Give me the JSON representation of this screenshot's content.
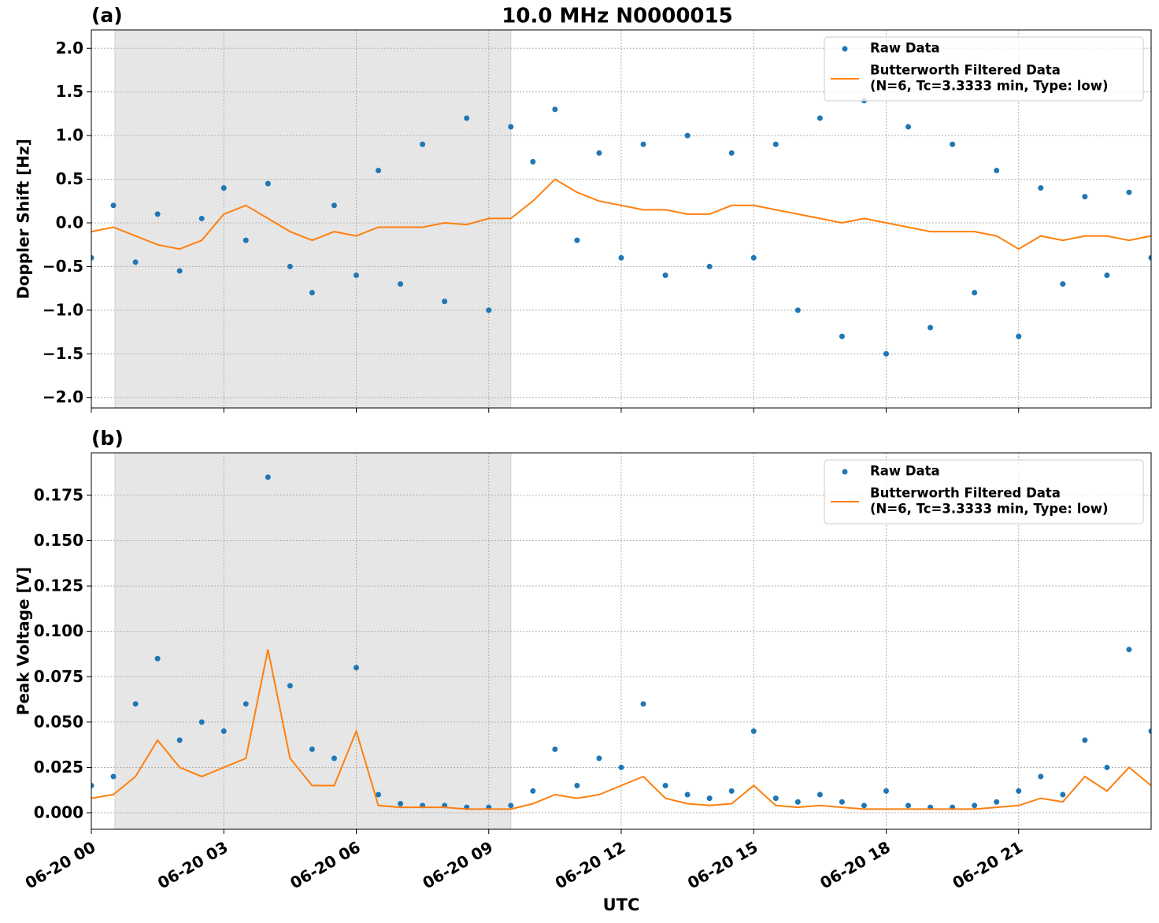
{
  "chart_data": [
    {
      "type": "scatter",
      "title": "10.0 MHz N0000015",
      "panel_label": "(a)",
      "y_label": "Doppler Shift [Hz]",
      "xlim": [
        0,
        24
      ],
      "ylim": [
        -2.12,
        2.21
      ],
      "shaded_span": [
        0.535,
        9.5
      ],
      "grid": true,
      "legend": "upper right",
      "xticks": [
        0,
        3,
        6,
        9,
        12,
        15,
        18,
        21
      ],
      "yticks": [
        {
          "value": -2.0,
          "label": "−2.0"
        },
        {
          "value": -1.5,
          "label": "−1.5"
        },
        {
          "value": -1.0,
          "label": "−1.0"
        },
        {
          "value": -0.5,
          "label": "−0.5"
        },
        {
          "value": 0.0,
          "label": "0.0"
        },
        {
          "value": 0.5,
          "label": "0.5"
        },
        {
          "value": 1.0,
          "label": "1.0"
        },
        {
          "value": 1.5,
          "label": "1.5"
        },
        {
          "value": 2.0,
          "label": "2.0"
        }
      ],
      "x": [
        0,
        0.5,
        1,
        1.5,
        2,
        2.5,
        3,
        3.5,
        4,
        4.5,
        5,
        5.5,
        6,
        6.5,
        7,
        7.5,
        8,
        8.5,
        9,
        9.5,
        10,
        10.5,
        11,
        11.5,
        12,
        12.5,
        13,
        13.5,
        14,
        14.5,
        15,
        15.5,
        16,
        16.5,
        17,
        17.5,
        18,
        18.5,
        19,
        19.5,
        20,
        20.5,
        21,
        21.5,
        22,
        22.5,
        23,
        23.5,
        24
      ],
      "series": [
        {
          "name": [
            "Raw Data"
          ],
          "mode": "markers",
          "color": "#1f77b4",
          "values": [
            -0.4,
            0.2,
            -0.45,
            0.1,
            -0.55,
            0.05,
            0.4,
            -0.2,
            0.45,
            -0.5,
            -0.8,
            0.2,
            -0.6,
            0.6,
            -0.7,
            0.9,
            -0.9,
            1.2,
            -1.0,
            1.1,
            0.7,
            1.3,
            -0.2,
            0.8,
            -0.4,
            0.9,
            -0.6,
            1.0,
            -0.5,
            0.8,
            -0.4,
            0.9,
            -1.0,
            1.2,
            -1.3,
            1.4,
            -1.5,
            1.1,
            -1.2,
            0.9,
            -0.8,
            0.6,
            -1.3,
            0.4,
            -0.7,
            0.3,
            -0.6,
            0.35,
            -0.4
          ]
        },
        {
          "name": [
            "Butterworth Filtered Data",
            "(N=6, Tc=3.3333 min, Type: low)"
          ],
          "mode": "line",
          "color": "#ff7f0e",
          "values": [
            -0.1,
            -0.05,
            -0.15,
            -0.25,
            -0.3,
            -0.2,
            0.1,
            0.2,
            0.05,
            -0.1,
            -0.2,
            -0.1,
            -0.15,
            -0.05,
            -0.05,
            -0.05,
            0,
            -0.02,
            0.05,
            0.05,
            0.25,
            0.5,
            0.35,
            0.25,
            0.2,
            0.15,
            0.15,
            0.1,
            0.1,
            0.2,
            0.2,
            0.15,
            0.1,
            0.05,
            0,
            0.05,
            0,
            -0.05,
            -0.1,
            -0.1,
            -0.1,
            -0.15,
            -0.3,
            -0.15,
            -0.2,
            -0.15,
            -0.15,
            -0.2,
            -0.15
          ]
        }
      ]
    },
    {
      "type": "scatter",
      "panel_label": "(b)",
      "y_label": "Peak Voltage [V]",
      "x_label": "UTC",
      "xlim": [
        0,
        24
      ],
      "ylim": [
        -0.0091,
        0.1984
      ],
      "shaded_span": [
        0.535,
        9.5
      ],
      "grid": true,
      "legend": "upper right",
      "xticks": [
        {
          "value": 0,
          "label": "06-20 00"
        },
        {
          "value": 3,
          "label": "06-20 03"
        },
        {
          "value": 6,
          "label": "06-20 06"
        },
        {
          "value": 9,
          "label": "06-20 09"
        },
        {
          "value": 12,
          "label": "06-20 12"
        },
        {
          "value": 15,
          "label": "06-20 15"
        },
        {
          "value": 18,
          "label": "06-20 18"
        },
        {
          "value": 21,
          "label": "06-20 21"
        }
      ],
      "yticks": [
        {
          "value": 0,
          "label": "0.000"
        },
        {
          "value": 0.025,
          "label": "0.025"
        },
        {
          "value": 0.05,
          "label": "0.050"
        },
        {
          "value": 0.075,
          "label": "0.075"
        },
        {
          "value": 0.1,
          "label": "0.100"
        },
        {
          "value": 0.125,
          "label": "0.125"
        },
        {
          "value": 0.15,
          "label": "0.150"
        },
        {
          "value": 0.175,
          "label": "0.175"
        }
      ],
      "x": [
        0,
        0.5,
        1,
        1.5,
        2,
        2.5,
        3,
        3.5,
        4,
        4.5,
        5,
        5.5,
        6,
        6.5,
        7,
        7.5,
        8,
        8.5,
        9,
        9.5,
        10,
        10.5,
        11,
        11.5,
        12,
        12.5,
        13,
        13.5,
        14,
        14.5,
        15,
        15.5,
        16,
        16.5,
        17,
        17.5,
        18,
        18.5,
        19,
        19.5,
        20,
        20.5,
        21,
        21.5,
        22,
        22.5,
        23,
        23.5,
        24
      ],
      "series": [
        {
          "name": [
            "Raw Data"
          ],
          "mode": "markers",
          "color": "#1f77b4",
          "values": [
            0.015,
            0.02,
            0.06,
            0.085,
            0.04,
            0.05,
            0.045,
            0.06,
            0.185,
            0.07,
            0.035,
            0.03,
            0.08,
            0.01,
            0.005,
            0.004,
            0.004,
            0.003,
            0.003,
            0.004,
            0.012,
            0.035,
            0.015,
            0.03,
            0.025,
            0.06,
            0.015,
            0.01,
            0.008,
            0.012,
            0.045,
            0.008,
            0.006,
            0.01,
            0.006,
            0.004,
            0.012,
            0.004,
            0.003,
            0.003,
            0.004,
            0.006,
            0.012,
            0.02,
            0.01,
            0.04,
            0.025,
            0.09,
            0.045
          ]
        },
        {
          "name": [
            "Butterworth Filtered Data",
            "(N=6, Tc=3.3333 min, Type: low)"
          ],
          "mode": "line",
          "color": "#ff7f0e",
          "values": [
            0.008,
            0.01,
            0.02,
            0.04,
            0.025,
            0.02,
            0.025,
            0.03,
            0.09,
            0.03,
            0.015,
            0.015,
            0.045,
            0.004,
            0.003,
            0.003,
            0.003,
            0.002,
            0.002,
            0.002,
            0.005,
            0.01,
            0.008,
            0.01,
            0.015,
            0.02,
            0.008,
            0.005,
            0.004,
            0.005,
            0.015,
            0.004,
            0.003,
            0.004,
            0.003,
            0.002,
            0.002,
            0.002,
            0.002,
            0.002,
            0.002,
            0.003,
            0.004,
            0.008,
            0.006,
            0.02,
            0.012,
            0.025,
            0.015
          ]
        }
      ]
    }
  ]
}
